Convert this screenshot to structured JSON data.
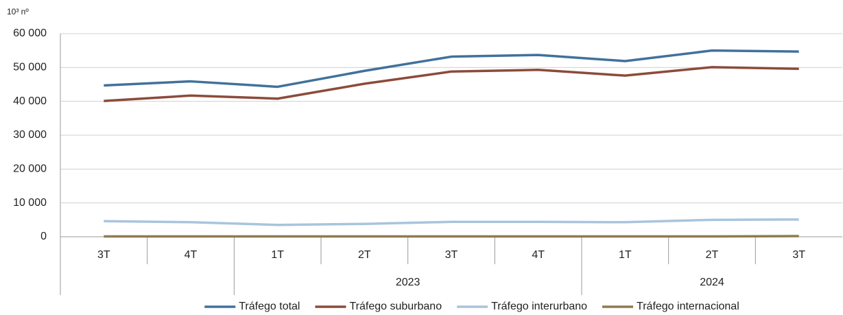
{
  "chart_data": {
    "type": "line",
    "y_label": "10³ nº",
    "categories": [
      "3T",
      "4T",
      "1T",
      "2T",
      "3T",
      "4T",
      "1T",
      "2T",
      "3T"
    ],
    "category_groups": [
      null,
      null,
      "2023",
      "2023",
      "2023",
      "2023",
      "2024",
      "2024",
      "2024"
    ],
    "series": [
      {
        "name": "Tráfego total",
        "color": "#41719c",
        "values": [
          44700,
          45900,
          44300,
          49000,
          53200,
          53700,
          51900,
          55000,
          54700
        ]
      },
      {
        "name": "Tráfego suburbano",
        "color": "#8c4b3a",
        "values": [
          40100,
          41700,
          40800,
          45200,
          48800,
          49300,
          47600,
          50100,
          49600
        ]
      },
      {
        "name": "Tráfego interurbano",
        "color": "#a9c4dd",
        "values": [
          4600,
          4300,
          3500,
          3800,
          4400,
          4400,
          4300,
          5000,
          5100
        ]
      },
      {
        "name": "Tráfego internacional",
        "color": "#8f7a4e",
        "values": [
          100,
          100,
          100,
          100,
          100,
          100,
          100,
          100,
          200
        ]
      }
    ],
    "ylim": [
      0,
      60000
    ],
    "yticks": [
      0,
      {
        "value": 10000,
        "label": "10 000"
      },
      {
        "value": 20000,
        "label": "20 000"
      },
      {
        "value": 30000,
        "label": "30 000"
      },
      {
        "value": 40000,
        "label": "40 000"
      },
      {
        "value": 50000,
        "label": "50 000"
      },
      {
        "value": 60000,
        "label": "60 000"
      }
    ],
    "grid": true,
    "legend": "bottom"
  }
}
